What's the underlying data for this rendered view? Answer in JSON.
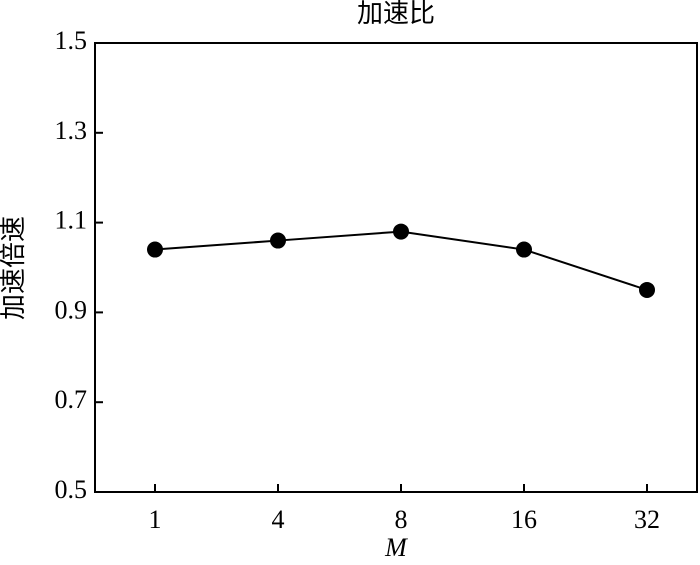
{
  "chart_data": {
    "type": "line",
    "title": "加速比",
    "x_label": "M",
    "y_label": "加速倍速",
    "categories": [
      "1",
      "4",
      "8",
      "16",
      "32"
    ],
    "series": [
      {
        "name": "加速比",
        "color": "#000000",
        "values": [
          1.04,
          1.06,
          1.08,
          1.04,
          0.95
        ]
      }
    ],
    "ylim": [
      0.5,
      1.5
    ],
    "yticks": [
      0.5,
      0.7,
      0.9,
      1.1,
      1.3,
      1.5
    ],
    "grid": false
  }
}
